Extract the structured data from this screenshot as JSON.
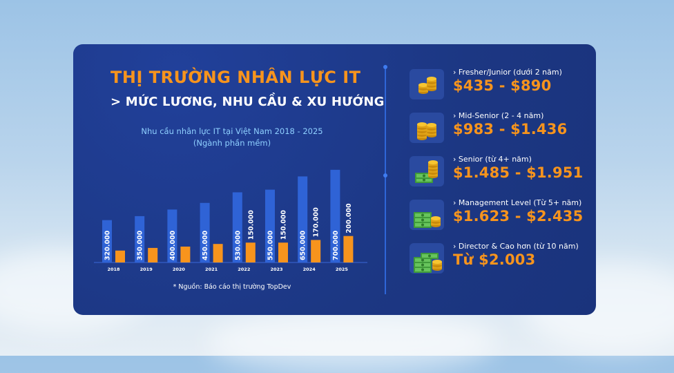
{
  "header": {
    "title": "THỊ TRƯỜNG NHÂN LỰC IT",
    "subtitle": "> MỨC LƯƠNG, NHU CẦU & XU HƯỚNG"
  },
  "chart_data": {
    "type": "bar",
    "title": "Nhu cầu nhân lực IT tại Việt Nam 2018 - 2025",
    "subtitle": "(Ngành phần mềm)",
    "categories": [
      "2018",
      "2019",
      "2020",
      "2021",
      "2022",
      "2023",
      "2024",
      "2025"
    ],
    "series": [
      {
        "values": [
          320000,
          350000,
          400000,
          450000,
          530000,
          550000,
          650000,
          700000
        ],
        "labels": [
          "320.000",
          "350.000",
          "400.000",
          "450.000",
          "530.000",
          "550.000",
          "650.000",
          "700.000"
        ],
        "color": "#2f63d6"
      },
      {
        "values": [
          90000,
          110000,
          120000,
          140000,
          150000,
          150000,
          170000,
          200000
        ],
        "labels": [
          "",
          "",
          "",
          "",
          "150.000",
          "150.000",
          "170.000",
          "200.000"
        ],
        "color": "#f7941d"
      }
    ],
    "ylim": [
      0,
      720000
    ],
    "grid": false
  },
  "source": "* Nguồn: Báo cáo thị trường TopDev",
  "salary": {
    "tiers": [
      {
        "label": "› Fresher/Junior (dưới 2 năm)",
        "value": "$435 - $890",
        "icon": "coins-icon"
      },
      {
        "label": "› Mid-Senior (2 - 4 năm)",
        "value": "$983 - $1.436",
        "icon": "coin-stack-icon"
      },
      {
        "label": "› Senior (từ 4+ năm)",
        "value": "$1.485 - $1.951",
        "icon": "coins-cash-icon"
      },
      {
        "label": "› Management Level (Từ 5+ năm)",
        "value": "$1.623 - $2.435",
        "icon": "cash-stack-icon"
      },
      {
        "label": "› Director & Cao hơn (từ 10 năm)",
        "value": "Từ $2.003",
        "icon": "cash-pile-icon"
      }
    ]
  },
  "colors": {
    "accent": "#f7941d",
    "bar_primary": "#2f63d6",
    "card": "#1d3a8a",
    "chart_title": "#8fd0ff"
  }
}
